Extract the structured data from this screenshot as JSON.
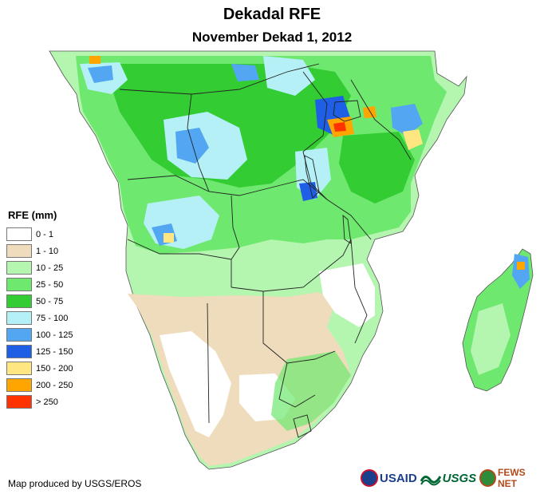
{
  "title": "Dekadal RFE",
  "subtitle": "November Dekad 1, 2012",
  "legend": {
    "title": "RFE (mm)",
    "classes": [
      {
        "label": "0 - 1",
        "color": "#ffffff"
      },
      {
        "label": "1 - 10",
        "color": "#efdcbc"
      },
      {
        "label": "10 - 25",
        "color": "#b4f5b0"
      },
      {
        "label": "25 - 50",
        "color": "#6ee86e"
      },
      {
        "label": "50 - 75",
        "color": "#33cc33"
      },
      {
        "label": "75 - 100",
        "color": "#b4f0f5"
      },
      {
        "label": "100 - 125",
        "color": "#52a6f2"
      },
      {
        "label": "125 - 150",
        "color": "#1f5fe6"
      },
      {
        "label": "150 - 200",
        "color": "#ffe680"
      },
      {
        "label": "200 - 250",
        "color": "#ffa500"
      },
      {
        "label": "> 250",
        "color": "#ff3300"
      }
    ]
  },
  "credit": "Map produced by USGS/EROS",
  "logos": {
    "usaid": "USAID",
    "usgs": "USGS",
    "fews": "FEWS NET"
  }
}
